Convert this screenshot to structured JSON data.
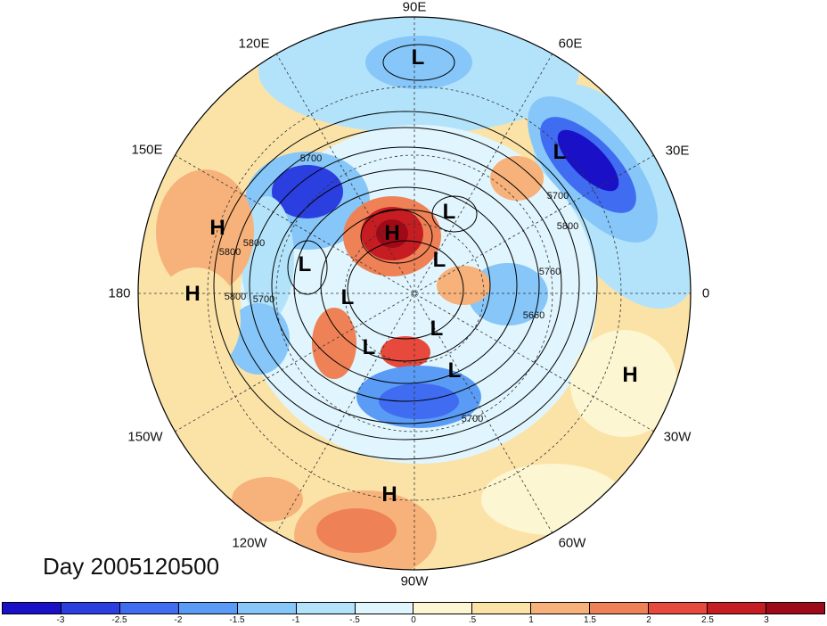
{
  "title": "Day 2005120500",
  "projection": "north-polar-stereographic",
  "longitude_labels": [
    {
      "text": "90E",
      "key": "n"
    },
    {
      "text": "60E",
      "key": "nne"
    },
    {
      "text": "30E",
      "key": "ene"
    },
    {
      "text": "0",
      "key": "e"
    },
    {
      "text": "30W",
      "key": "ese"
    },
    {
      "text": "60W",
      "key": "sse"
    },
    {
      "text": "90W",
      "key": "s"
    },
    {
      "text": "120W",
      "key": "ssw"
    },
    {
      "text": "150W",
      "key": "wsw"
    },
    {
      "text": "180",
      "key": "w"
    },
    {
      "text": "150E",
      "key": "wnw"
    },
    {
      "text": "120E",
      "key": "nnw"
    }
  ],
  "pressure_systems": [
    {
      "type": "L",
      "label": "L"
    },
    {
      "type": "L",
      "label": "L"
    },
    {
      "type": "H",
      "label": "H"
    },
    {
      "type": "H",
      "label": "H"
    },
    {
      "type": "L",
      "label": "L"
    },
    {
      "type": "L",
      "label": "L"
    },
    {
      "type": "H",
      "label": "H"
    },
    {
      "type": "L",
      "label": "L"
    },
    {
      "type": "L",
      "label": "L"
    },
    {
      "type": "L",
      "label": "L"
    },
    {
      "type": "L",
      "label": "L"
    },
    {
      "type": "L",
      "label": "L"
    },
    {
      "type": "H",
      "label": "H"
    },
    {
      "type": "H",
      "label": "H"
    }
  ],
  "contour_labels": [
    "5700",
    "5800",
    "5800",
    "5700",
    "5800",
    "5700",
    "5800",
    "5760",
    "5660",
    "5700"
  ],
  "colorbar": {
    "levels": [
      "-3",
      "-2.5",
      "-2",
      "-1.5",
      "-1",
      "-.5",
      "0",
      ".5",
      "1",
      "1.5",
      "2",
      "2.5",
      "3"
    ],
    "colors": [
      "#1a10c8",
      "#2b3ee0",
      "#3f6cf0",
      "#5a9cf5",
      "#86c6f8",
      "#b3e3fb",
      "#e0f5fd",
      "#fdf6d3",
      "#fbe3a8",
      "#f6b27a",
      "#ef8156",
      "#e74a3c",
      "#c61d23",
      "#9e0a17"
    ]
  }
}
